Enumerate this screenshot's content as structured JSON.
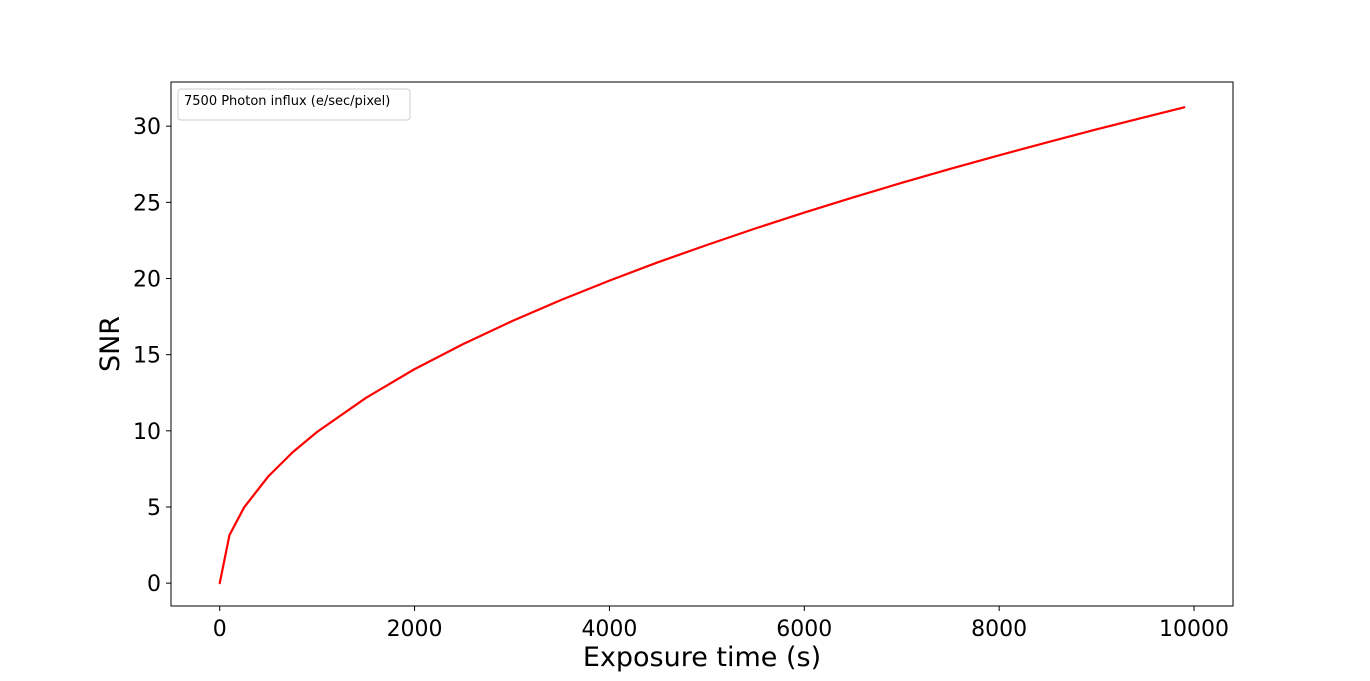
{
  "chart_data": {
    "type": "line",
    "title": "",
    "xlabel": "Exposure time (s)",
    "ylabel": "SNR",
    "xlim": [
      -500,
      10400
    ],
    "ylim": [
      -1.5,
      32.9
    ],
    "xticks": [
      0,
      2000,
      4000,
      6000,
      8000,
      10000
    ],
    "yticks": [
      0,
      5,
      10,
      15,
      20,
      25,
      30
    ],
    "grid": false,
    "legend_position": "top-left",
    "series": [
      {
        "name": "7500 Photon influx (e/sec/pixel)",
        "color": "#ff0000",
        "x": [
          0,
          100,
          250,
          500,
          750,
          1000,
          1500,
          2000,
          2500,
          3000,
          3500,
          4000,
          4500,
          5000,
          5500,
          6000,
          6500,
          7000,
          7500,
          8000,
          8500,
          9000,
          9500,
          9900
        ],
        "y": [
          0,
          3.15,
          4.97,
          7.02,
          8.6,
          9.93,
          12.16,
          14.05,
          15.7,
          17.2,
          18.58,
          19.86,
          21.07,
          22.2,
          23.29,
          24.33,
          25.32,
          26.28,
          27.2,
          28.09,
          28.95,
          29.79,
          30.6,
          31.24
        ]
      }
    ]
  }
}
